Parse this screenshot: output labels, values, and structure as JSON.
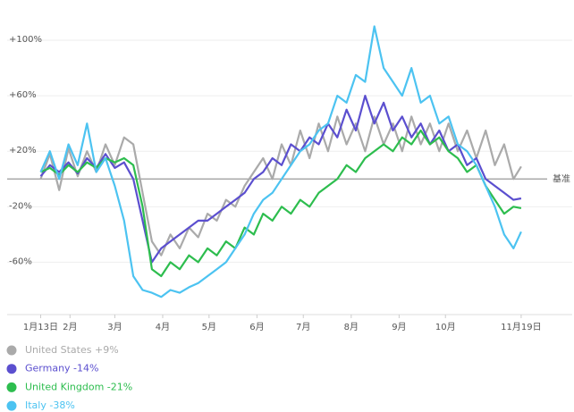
{
  "chart_data": {
    "type": "line",
    "baseline_label": "基准",
    "xlim": [
      -2,
      318
    ],
    "xticks": [
      {
        "value": 0,
        "label": "1月13日"
      },
      {
        "value": 19,
        "label": "2月"
      },
      {
        "value": 48,
        "label": "3月"
      },
      {
        "value": 79,
        "label": "4月"
      },
      {
        "value": 109,
        "label": "5月"
      },
      {
        "value": 140,
        "label": "6月"
      },
      {
        "value": 170,
        "label": "7月"
      },
      {
        "value": 201,
        "label": "8月"
      },
      {
        "value": 232,
        "label": "9月"
      },
      {
        "value": 262,
        "label": "10月"
      },
      {
        "value": 311,
        "label": "11月19日"
      }
    ],
    "ylim": [
      -90,
      120
    ],
    "yticks": [
      {
        "value": -60,
        "label": "-60%"
      },
      {
        "value": -20,
        "label": "-20%"
      },
      {
        "value": 20,
        "label": "+20%"
      },
      {
        "value": 60,
        "label": "+60%"
      },
      {
        "value": 100,
        "label": "+100%"
      }
    ],
    "grid": true,
    "x": [
      0,
      6,
      12,
      18,
      24,
      30,
      36,
      42,
      48,
      54,
      60,
      66,
      72,
      78,
      84,
      90,
      96,
      102,
      108,
      114,
      120,
      126,
      132,
      138,
      144,
      150,
      156,
      162,
      168,
      174,
      180,
      186,
      192,
      198,
      204,
      210,
      216,
      222,
      228,
      234,
      240,
      246,
      252,
      258,
      264,
      270,
      276,
      282,
      288,
      294,
      300,
      306,
      311
    ],
    "series": [
      {
        "name": "United States +9%",
        "color": "#aaaaaa",
        "values": [
          0,
          18,
          -8,
          22,
          2,
          20,
          5,
          25,
          10,
          30,
          25,
          -10,
          -45,
          -55,
          -40,
          -50,
          -35,
          -42,
          -25,
          -30,
          -15,
          -20,
          -5,
          5,
          15,
          0,
          25,
          10,
          35,
          15,
          40,
          20,
          45,
          25,
          40,
          20,
          45,
          25,
          40,
          20,
          45,
          25,
          40,
          20,
          40,
          20,
          35,
          15,
          35,
          10,
          25,
          0,
          9
        ]
      },
      {
        "name": "Germany -14%",
        "color": "#5b4fcf",
        "values": [
          2,
          10,
          5,
          12,
          4,
          15,
          8,
          18,
          8,
          12,
          0,
          -30,
          -60,
          -50,
          -45,
          -40,
          -35,
          -30,
          -30,
          -25,
          -20,
          -15,
          -10,
          0,
          5,
          15,
          10,
          25,
          20,
          30,
          25,
          40,
          30,
          50,
          35,
          60,
          40,
          55,
          35,
          45,
          30,
          40,
          25,
          35,
          20,
          25,
          10,
          15,
          0,
          -5,
          -10,
          -15,
          -14
        ]
      },
      {
        "name": "United Kingdom -21%",
        "color": "#2dbd4e",
        "values": [
          5,
          8,
          3,
          10,
          5,
          12,
          8,
          15,
          12,
          15,
          10,
          -20,
          -65,
          -70,
          -60,
          -65,
          -55,
          -60,
          -50,
          -55,
          -45,
          -50,
          -35,
          -40,
          -25,
          -30,
          -20,
          -25,
          -15,
          -20,
          -10,
          -5,
          0,
          10,
          5,
          15,
          20,
          25,
          20,
          30,
          25,
          35,
          25,
          30,
          20,
          15,
          5,
          10,
          -5,
          -15,
          -25,
          -20,
          -21
        ]
      },
      {
        "name": "Italy -38%",
        "color": "#4cc3f1",
        "values": [
          5,
          20,
          0,
          25,
          10,
          40,
          5,
          15,
          -5,
          -30,
          -70,
          -80,
          -82,
          -85,
          -80,
          -82,
          -78,
          -75,
          -70,
          -65,
          -60,
          -50,
          -40,
          -25,
          -15,
          -10,
          0,
          10,
          20,
          25,
          35,
          40,
          60,
          55,
          75,
          70,
          110,
          80,
          70,
          60,
          80,
          55,
          60,
          40,
          45,
          25,
          20,
          10,
          -5,
          -20,
          -40,
          -50,
          -38
        ]
      }
    ]
  }
}
